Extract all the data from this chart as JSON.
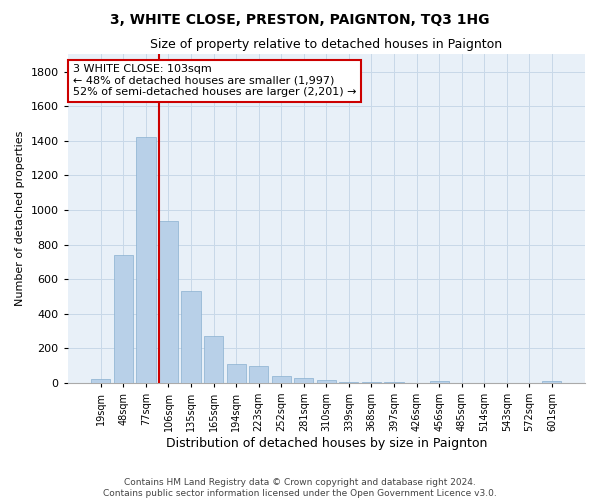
{
  "title": "3, WHITE CLOSE, PRESTON, PAIGNTON, TQ3 1HG",
  "subtitle": "Size of property relative to detached houses in Paignton",
  "xlabel": "Distribution of detached houses by size in Paignton",
  "ylabel": "Number of detached properties",
  "footer_line1": "Contains HM Land Registry data © Crown copyright and database right 2024.",
  "footer_line2": "Contains public sector information licensed under the Open Government Licence v3.0.",
  "categories": [
    "19sqm",
    "48sqm",
    "77sqm",
    "106sqm",
    "135sqm",
    "165sqm",
    "194sqm",
    "223sqm",
    "252sqm",
    "281sqm",
    "310sqm",
    "339sqm",
    "368sqm",
    "397sqm",
    "426sqm",
    "456sqm",
    "485sqm",
    "514sqm",
    "543sqm",
    "572sqm",
    "601sqm"
  ],
  "values": [
    22,
    740,
    1420,
    935,
    530,
    270,
    108,
    98,
    42,
    28,
    18,
    8,
    4,
    3,
    2,
    12,
    1,
    2,
    0,
    0,
    12
  ],
  "bar_color": "#b8d0e8",
  "bar_edge_color": "#8ab0d0",
  "vline_index": 3,
  "vline_color": "#cc0000",
  "vline_label": "3 WHITE CLOSE: 103sqm",
  "annotation_line1": "← 48% of detached houses are smaller (1,997)",
  "annotation_line2": "52% of semi-detached houses are larger (2,201) →",
  "annotation_box_edgecolor": "#cc0000",
  "ylim": [
    0,
    1900
  ],
  "yticks": [
    0,
    200,
    400,
    600,
    800,
    1000,
    1200,
    1400,
    1600,
    1800
  ],
  "background_color": "#ffffff",
  "plot_bg_color": "#e8f0f8",
  "grid_color": "#c8d8e8",
  "title_fontsize": 10,
  "subtitle_fontsize": 9,
  "xlabel_fontsize": 9,
  "ylabel_fontsize": 8,
  "tick_fontsize": 8,
  "xtick_fontsize": 7,
  "footer_fontsize": 6.5,
  "annot_fontsize": 8
}
